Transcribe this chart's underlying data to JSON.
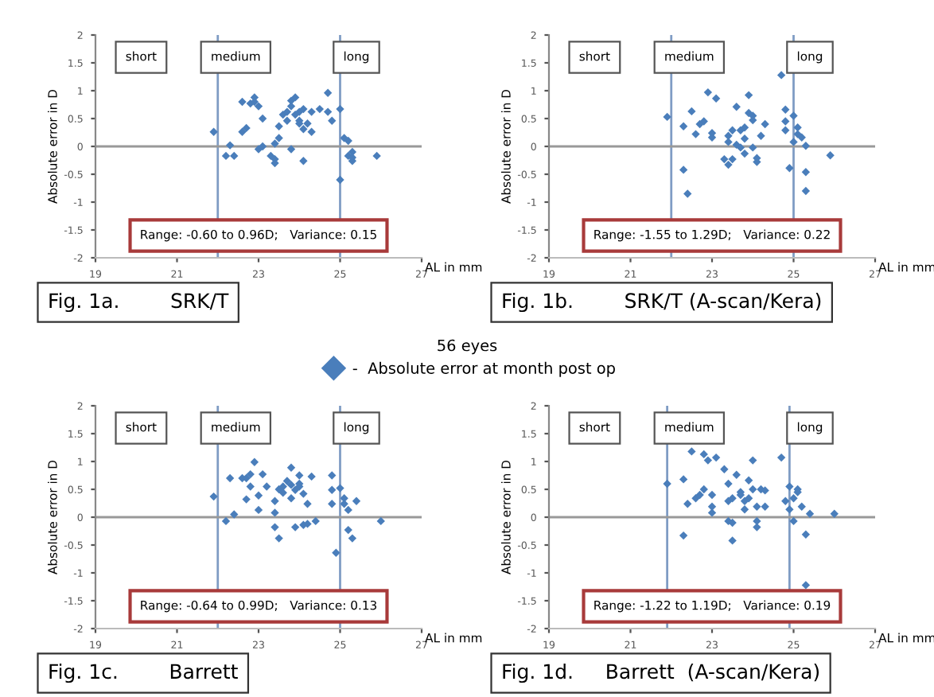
{
  "chart_data": [
    {
      "type": "scatter",
      "title": "Fig. 1a.        SRK/T",
      "xlabel": "AL in mm",
      "ylabel": "Absolute error in D",
      "legend_title": "56 eyes",
      "legend": "bottom",
      "marker": "diamond",
      "grid": false,
      "xlim": [
        19,
        27
      ],
      "xticks": [
        19,
        21,
        23,
        25,
        27
      ],
      "ylim": [
        -2,
        2
      ],
      "yticks": [
        -2,
        -1.5,
        -1,
        -0.5,
        0,
        0.5,
        1,
        1.5,
        2
      ],
      "ref_lines": [
        {
          "axis": "x",
          "value": 22,
          "color": "#7f9cc4"
        },
        {
          "axis": "x",
          "value": 25,
          "color": "#7f9cc4"
        },
        {
          "axis": "y",
          "value": 0,
          "color": "#999999"
        }
      ],
      "annotations": [
        "short",
        "medium",
        "long",
        "Range: -0.60 to 0.96D;   Variance: 0.15"
      ],
      "series": [
        {
          "name": "-  Absolute error at month post op",
          "color": "#4a7ebb",
          "x": [
            21.9,
            22.2,
            22.4,
            22.3,
            22.6,
            22.6,
            22.7,
            22.8,
            22.9,
            22.9,
            23.0,
            23.0,
            23.1,
            23.1,
            23.3,
            23.4,
            23.4,
            23.4,
            23.5,
            23.5,
            23.6,
            23.7,
            23.7,
            23.8,
            23.8,
            23.8,
            23.9,
            23.9,
            24.0,
            24.0,
            24.0,
            24.1,
            24.1,
            24.2,
            24.1,
            24.3,
            24.3,
            24.5,
            24.7,
            24.7,
            24.8,
            25.0,
            25.0,
            25.1,
            25.2,
            25.2,
            25.3,
            25.3,
            25.3,
            25.9
          ],
          "values": [
            0.26,
            -0.17,
            -0.17,
            0.02,
            0.8,
            0.26,
            0.33,
            0.77,
            0.88,
            0.8,
            0.72,
            -0.05,
            0.0,
            0.5,
            -0.17,
            -0.3,
            -0.23,
            0.05,
            0.15,
            0.36,
            0.57,
            0.62,
            0.46,
            0.82,
            0.72,
            -0.05,
            0.57,
            0.88,
            0.46,
            0.62,
            0.41,
            0.67,
            0.31,
            0.41,
            -0.26,
            0.62,
            0.26,
            0.67,
            0.62,
            0.96,
            0.46,
            -0.6,
            0.67,
            0.15,
            0.1,
            -0.17,
            -0.1,
            -0.26,
            -0.2,
            -0.17
          ]
        }
      ]
    },
    {
      "type": "scatter",
      "title": "Fig. 1b.        SRK/T (A-scan/Kera)",
      "xlabel": "AL in mm",
      "ylabel": "Absolute error in D",
      "marker": "diamond",
      "grid": false,
      "xlim": [
        19,
        27
      ],
      "xticks": [
        19,
        21,
        23,
        25,
        27
      ],
      "ylim": [
        -2,
        2
      ],
      "yticks": [
        -2,
        -1.5,
        -1,
        -0.5,
        0,
        0.5,
        1,
        1.5,
        2
      ],
      "ref_lines": [
        {
          "axis": "x",
          "value": 22,
          "color": "#7f9cc4"
        },
        {
          "axis": "x",
          "value": 25,
          "color": "#7f9cc4"
        },
        {
          "axis": "y",
          "value": 0,
          "color": "#999999"
        }
      ],
      "annotations": [
        "short",
        "medium",
        "long",
        "Range: -1.55 to 1.29D;   Variance: 0.22"
      ],
      "series": [
        {
          "color": "#4a7ebb",
          "x": [
            21.9,
            22.3,
            22.4,
            22.3,
            22.5,
            22.6,
            22.7,
            22.8,
            22.9,
            23.0,
            23.0,
            23.1,
            23.3,
            23.4,
            23.4,
            23.4,
            23.5,
            23.5,
            23.6,
            23.6,
            23.7,
            23.7,
            23.8,
            23.8,
            23.8,
            23.9,
            23.9,
            24.0,
            24.0,
            24.0,
            24.1,
            24.1,
            24.2,
            24.3,
            24.7,
            24.8,
            24.8,
            24.8,
            24.9,
            25.0,
            25.0,
            25.1,
            25.1,
            25.2,
            25.3,
            25.3,
            25.3,
            25.9
          ],
          "values": [
            0.53,
            -0.42,
            -0.85,
            0.36,
            0.63,
            0.22,
            0.4,
            0.45,
            0.97,
            0.16,
            0.24,
            0.86,
            -0.23,
            -0.33,
            0.19,
            0.08,
            0.29,
            -0.23,
            0.03,
            0.71,
            0.29,
            -0.02,
            0.14,
            -0.13,
            0.34,
            0.6,
            0.92,
            0.47,
            -0.02,
            0.55,
            -0.28,
            -0.21,
            0.19,
            0.4,
            1.28,
            0.29,
            0.66,
            0.45,
            -0.39,
            0.55,
            0.08,
            0.34,
            0.22,
            0.16,
            -0.46,
            -0.8,
            0.01,
            -0.16
          ]
        }
      ]
    },
    {
      "type": "scatter",
      "title": "Fig. 1c.        Barrett",
      "xlabel": "AL in mm",
      "ylabel": "Absolute error in D",
      "marker": "diamond",
      "grid": false,
      "xlim": [
        19,
        27
      ],
      "xticks": [
        19,
        21,
        23,
        25,
        27
      ],
      "ylim": [
        -2,
        2
      ],
      "yticks": [
        -2,
        -1.5,
        -1,
        -0.5,
        0,
        0.5,
        1,
        1.5,
        2
      ],
      "ref_lines": [
        {
          "axis": "x",
          "value": 22,
          "color": "#7f9cc4"
        },
        {
          "axis": "x",
          "value": 25,
          "color": "#7f9cc4"
        },
        {
          "axis": "y",
          "value": 0,
          "color": "#999999"
        }
      ],
      "annotations": [
        "short",
        "medium",
        "long",
        "Range: -0.64 to 0.99D;   Variance: 0.13"
      ],
      "series": [
        {
          "color": "#4a7ebb",
          "x": [
            21.9,
            22.2,
            22.3,
            22.4,
            22.6,
            22.7,
            22.7,
            22.8,
            22.8,
            22.9,
            23.0,
            23.0,
            23.1,
            23.2,
            23.4,
            23.4,
            23.4,
            23.5,
            23.5,
            23.6,
            23.6,
            23.7,
            23.8,
            23.8,
            23.8,
            23.9,
            23.9,
            24.0,
            24.0,
            24.0,
            24.1,
            24.1,
            24.2,
            24.2,
            24.3,
            24.4,
            24.8,
            24.8,
            24.8,
            24.9,
            25.0,
            25.1,
            25.1,
            25.2,
            25.2,
            25.3,
            25.4,
            26.0
          ],
          "values": [
            0.37,
            -0.07,
            0.7,
            0.05,
            0.7,
            0.32,
            0.7,
            0.55,
            0.77,
            0.99,
            0.39,
            0.13,
            0.77,
            0.55,
            -0.18,
            0.29,
            0.08,
            0.5,
            -0.38,
            0.55,
            0.44,
            0.65,
            0.58,
            0.89,
            0.34,
            0.49,
            -0.18,
            0.75,
            0.55,
            0.6,
            0.42,
            -0.14,
            0.24,
            -0.12,
            0.73,
            -0.07,
            0.75,
            0.49,
            0.24,
            -0.64,
            0.52,
            0.34,
            0.24,
            0.13,
            -0.23,
            -0.38,
            0.29,
            -0.07
          ]
        }
      ]
    },
    {
      "type": "scatter",
      "title": "Fig. 1d.     Barrett  (A-scan/Kera)",
      "xlabel": "AL in mm",
      "ylabel": "Absolute error in D",
      "marker": "diamond",
      "grid": false,
      "xlim": [
        19,
        27
      ],
      "xticks": [
        19,
        21,
        23,
        25,
        27
      ],
      "ylim": [
        -2,
        2
      ],
      "yticks": [
        -2,
        -1.5,
        -1,
        -0.5,
        0,
        0.5,
        1,
        1.5,
        2
      ],
      "ref_lines": [
        {
          "axis": "x",
          "value": 21.9,
          "color": "#7f9cc4"
        },
        {
          "axis": "x",
          "value": 24.9,
          "color": "#7f9cc4"
        },
        {
          "axis": "y",
          "value": 0,
          "color": "#999999"
        }
      ],
      "annotations": [
        "short",
        "medium",
        "long",
        "Range: -1.22 to 1.19D;   Variance: 0.19"
      ],
      "series": [
        {
          "color": "#4a7ebb",
          "x": [
            21.9,
            22.3,
            22.3,
            22.4,
            22.5,
            22.6,
            22.7,
            22.8,
            22.8,
            22.9,
            23.0,
            23.0,
            23.0,
            23.1,
            23.3,
            23.4,
            23.4,
            23.4,
            23.5,
            23.5,
            23.5,
            23.6,
            23.7,
            23.7,
            23.8,
            23.8,
            23.9,
            23.9,
            24.0,
            24.0,
            24.1,
            24.1,
            24.1,
            24.2,
            24.3,
            24.3,
            24.7,
            24.8,
            24.9,
            24.9,
            25.0,
            25.0,
            25.1,
            25.1,
            25.2,
            25.3,
            25.3,
            25.4,
            26.0
          ],
          "values": [
            0.6,
            -0.33,
            0.68,
            0.24,
            1.18,
            0.34,
            0.4,
            0.5,
            1.13,
            1.02,
            0.4,
            0.19,
            0.08,
            1.07,
            0.86,
            0.29,
            -0.07,
            0.6,
            0.34,
            -0.1,
            -0.42,
            0.76,
            0.45,
            0.4,
            0.29,
            0.14,
            0.34,
            0.66,
            1.02,
            0.5,
            -0.07,
            -0.18,
            0.19,
            0.5,
            0.19,
            0.48,
            1.07,
            0.29,
            0.55,
            0.14,
            -0.07,
            0.34,
            0.45,
            0.5,
            0.19,
            -0.31,
            -1.22,
            0.06,
            0.06
          ]
        }
      ]
    }
  ]
}
